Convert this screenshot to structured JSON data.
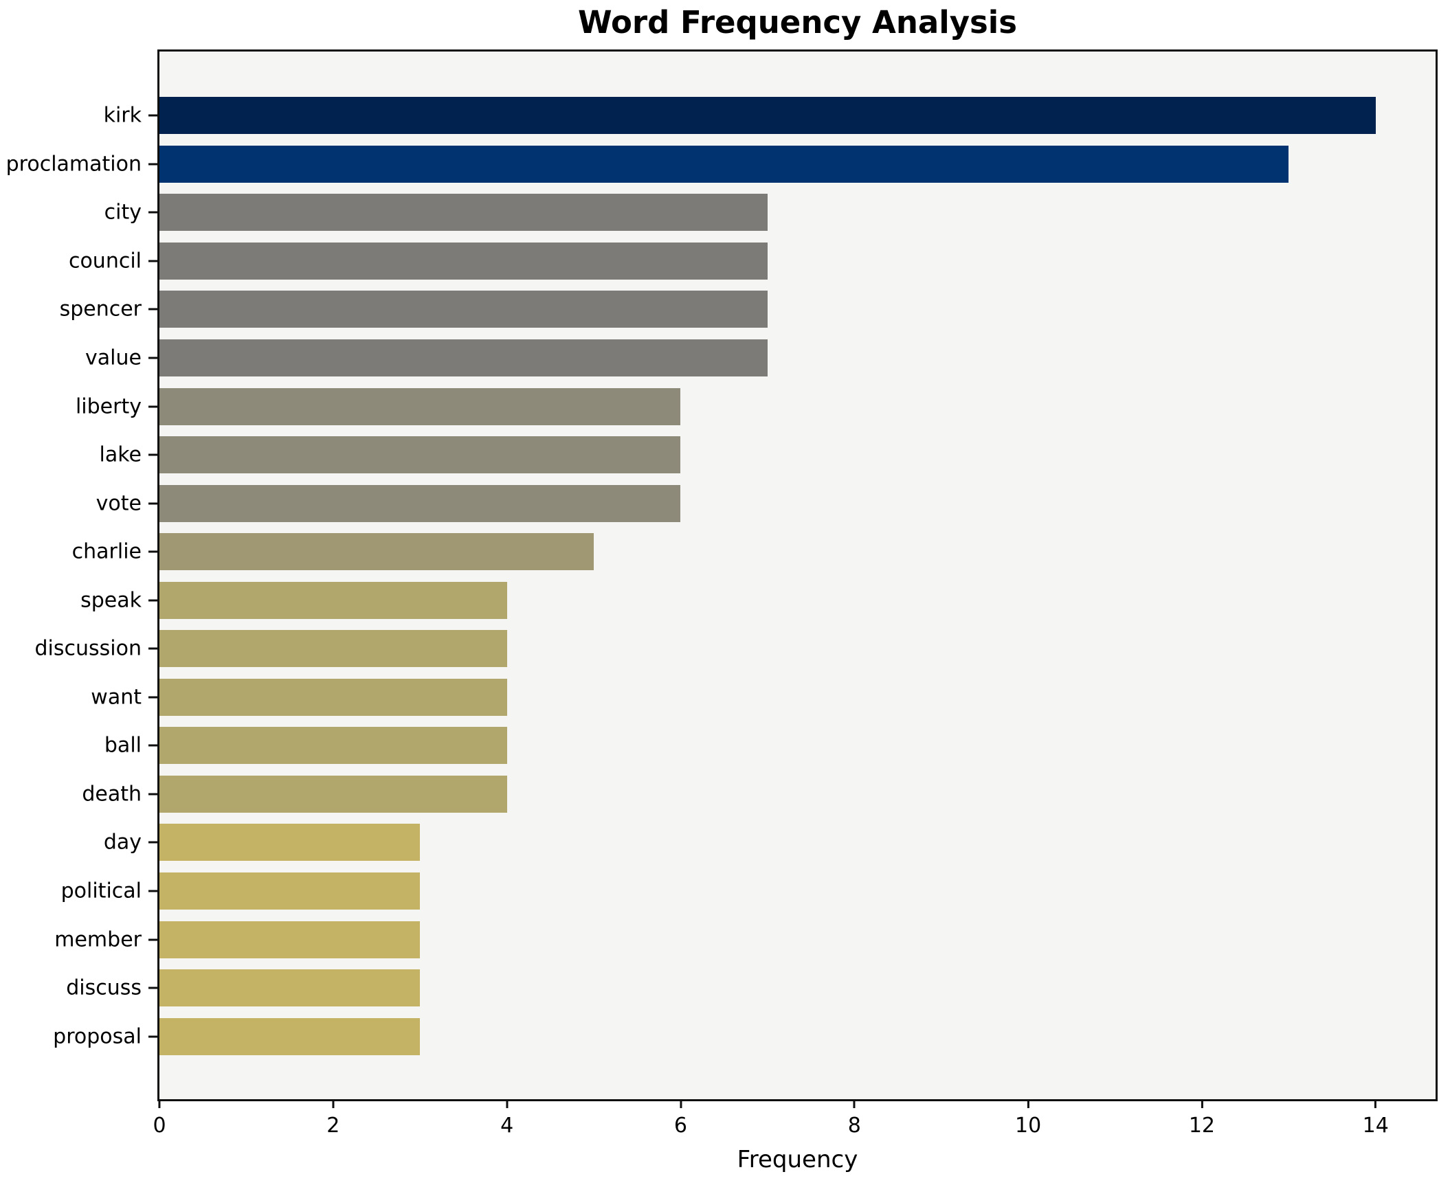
{
  "chart_data": {
    "type": "bar",
    "orientation": "horizontal",
    "title": "Word Frequency Analysis",
    "xlabel": "Frequency",
    "ylabel": "",
    "categories": [
      "kirk",
      "proclamation",
      "city",
      "council",
      "spencer",
      "value",
      "liberty",
      "lake",
      "vote",
      "charlie",
      "speak",
      "discussion",
      "want",
      "ball",
      "death",
      "day",
      "political",
      "member",
      "discuss",
      "proposal"
    ],
    "values": [
      14,
      13,
      7,
      7,
      7,
      7,
      6,
      6,
      6,
      5,
      4,
      4,
      4,
      4,
      4,
      3,
      3,
      3,
      3,
      3
    ],
    "bar_colors": [
      "#01224e",
      "#00336f",
      "#7c7b78",
      "#7c7b78",
      "#7c7b78",
      "#7c7b78",
      "#8e8a79",
      "#8e8a79",
      "#8e8a79",
      "#a09873",
      "#b1a76c",
      "#b1a76c",
      "#b1a76c",
      "#b1a76c",
      "#b1a76c",
      "#c4b365",
      "#c4b365",
      "#c4b365",
      "#c4b365",
      "#c4b365"
    ],
    "xlim": [
      0,
      14.69
    ],
    "xticks": [
      0,
      2,
      4,
      6,
      8,
      10,
      12,
      14
    ],
    "grid": false,
    "legend_position": "none",
    "plot_background": "#f5f5f3",
    "figure_background": "#ffffff",
    "spine_color": "#0f0f0f"
  }
}
